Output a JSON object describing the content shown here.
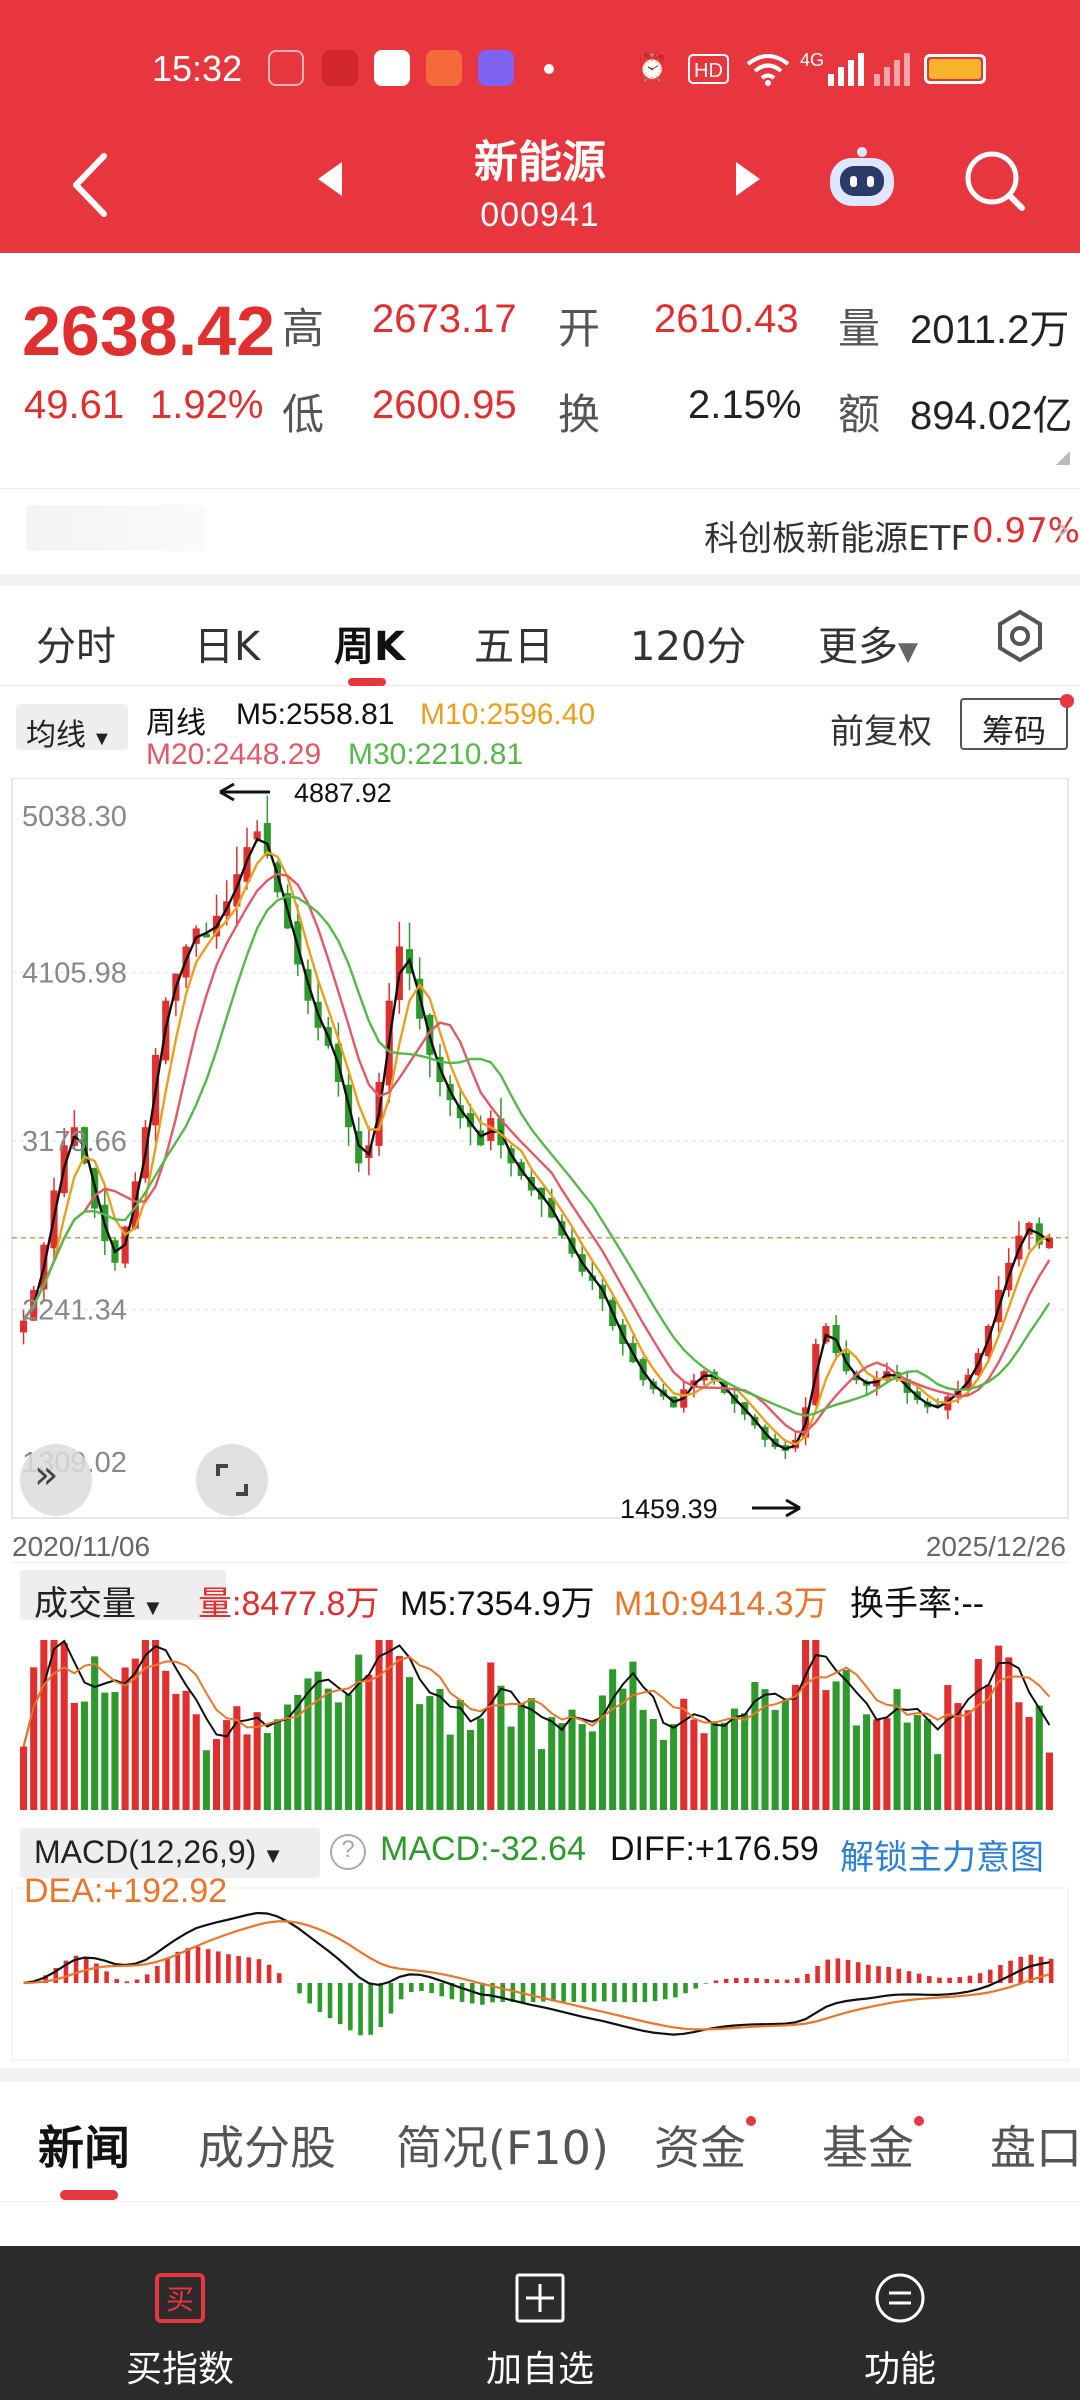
{
  "status_bar": {
    "time": "15:32",
    "network": "4G",
    "hd": "HD"
  },
  "header": {
    "title": "新能源",
    "code": "000941"
  },
  "quote": {
    "price": "2638.42",
    "change": "49.61",
    "change_pct": "1.92%",
    "high_label": "高",
    "high": "2673.17",
    "low_label": "低",
    "low": "2600.95",
    "open_label": "开",
    "open": "2610.43",
    "turnover_label": "换",
    "turnover": "2.15%",
    "volume_label": "量",
    "volume": "2011.2万",
    "amount_label": "额",
    "amount": "894.02亿"
  },
  "etf": {
    "name": "科创板新能源ETF",
    "pct": "0.97%"
  },
  "period_tabs": [
    "分时",
    "日K",
    "周K",
    "五日",
    "120分",
    "更多"
  ],
  "active_tab": "周K",
  "ma_legend": {
    "chip": "均线",
    "period": "周线",
    "m5": "M5:2558.81",
    "m10": "M10:2596.40",
    "m20": "M20:2448.29",
    "m30": "M30:2210.81",
    "adjust": "前复权",
    "chips_btn": "筹码"
  },
  "chart_data": {
    "type": "candlestick",
    "y_ticks": [
      "5038.30",
      "4105.98",
      "3173.66",
      "2241.34",
      "1309.02"
    ],
    "ylim": [
      1309.02,
      5038.3
    ],
    "x_start": "2020/11/06",
    "x_end": "2025/12/26",
    "annotations": {
      "high": "4887.92",
      "low": "1459.39"
    },
    "ref_line": 2638.42,
    "close_series": [
      2180,
      2350,
      2600,
      2900,
      3150,
      3250,
      3050,
      2800,
      2620,
      2500,
      2700,
      2950,
      3250,
      3650,
      3950,
      4100,
      4250,
      4350,
      4300,
      4420,
      4500,
      4650,
      4800,
      4887,
      4750,
      4550,
      4350,
      4150,
      3950,
      3800,
      3700,
      3500,
      3250,
      3050,
      3150,
      3500,
      3950,
      4250,
      4100,
      3850,
      3650,
      3500,
      3400,
      3300,
      3250,
      3150,
      3300,
      3150,
      3050,
      2980,
      2900,
      2850,
      2750,
      2650,
      2550,
      2450,
      2400,
      2300,
      2150,
      2050,
      1950,
      1850,
      1800,
      1760,
      1700,
      1800,
      1850,
      1900,
      1850,
      1780,
      1720,
      1660,
      1600,
      1520,
      1480,
      1459,
      1520,
      1700,
      2050,
      2150,
      2000,
      1900,
      1850,
      1820,
      1860,
      1900,
      1850,
      1780,
      1740,
      1700,
      1700,
      1760,
      1800,
      1880,
      2000,
      2150,
      2350,
      2500,
      2650,
      2720,
      2600,
      2638
    ]
  },
  "volume_panel": {
    "chip": "成交量",
    "vol": "量:8477.8万",
    "m5": "M5:7354.9万",
    "m10": "M10:9414.3万",
    "turnover": "换手率:--"
  },
  "macd_panel": {
    "chip": "MACD(12,26,9)",
    "macd": "MACD:-32.64",
    "diff": "DIFF:+176.59",
    "unlock": "解锁主力意图",
    "dea": "DEA:+192.92"
  },
  "bottom_tabs": [
    "新闻",
    "成分股",
    "简况(F10)",
    "资金",
    "基金",
    "盘口"
  ],
  "bottom_nav": [
    {
      "label": "买指数",
      "icon": "buy-icon"
    },
    {
      "label": "加自选",
      "icon": "add-favorite-icon"
    },
    {
      "label": "功能",
      "icon": "menu-icon"
    }
  ],
  "colors": {
    "up": "#e02f2f",
    "down": "#2e9a2e",
    "accent": "#e8363f",
    "m5": "#111111",
    "m10": "#e9a01f",
    "m20": "#e05a6a",
    "m30": "#56b84a"
  }
}
